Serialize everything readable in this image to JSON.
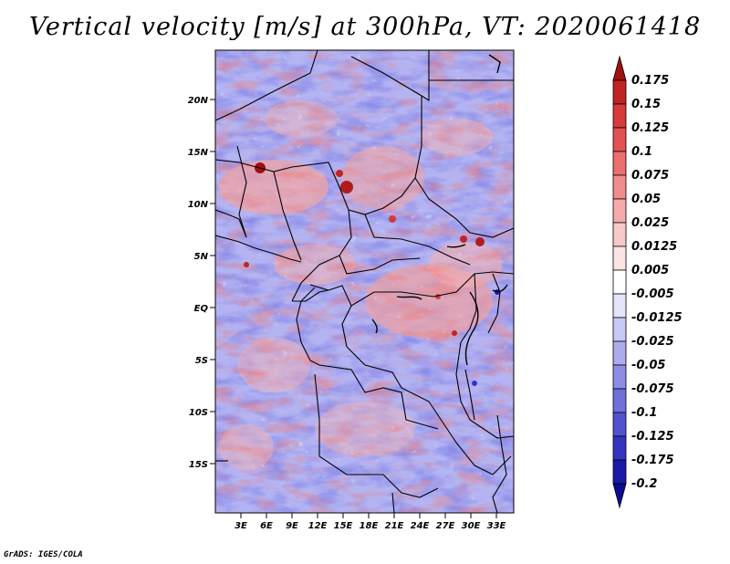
{
  "title": "Vertical velocity [m/s] at 300hPa, VT: 2020061418",
  "credit": "GrADS: IGES/COLA",
  "map": {
    "lat_ticks": [
      "20N",
      "15N",
      "10N",
      "5N",
      "EQ",
      "5S",
      "10S",
      "15S"
    ],
    "lon_ticks": [
      "3E",
      "6E",
      "9E",
      "12E",
      "15E",
      "18E",
      "21E",
      "24E",
      "27E",
      "30E",
      "33E"
    ]
  },
  "colorbar": {
    "levels": [
      "0.175",
      "0.15",
      "0.125",
      "0.1",
      "0.075",
      "0.05",
      "0.025",
      "0.0125",
      "0.005",
      "-0.005",
      "-0.0125",
      "-0.025",
      "-0.05",
      "-0.075",
      "-0.1",
      "-0.125",
      "-0.175",
      "-0.2"
    ],
    "colors": [
      "#a01010",
      "#c02424",
      "#d63a3a",
      "#e25252",
      "#eb6f6f",
      "#f08c8c",
      "#f5aaaa",
      "#f9c8c8",
      "#fce4e4",
      "#ffffff",
      "#e4e4fb",
      "#c9c9f5",
      "#ababee",
      "#8e8ee6",
      "#7070dc",
      "#5252d0",
      "#3434c2",
      "#1a1aa8",
      "#0c0c8c"
    ]
  }
}
